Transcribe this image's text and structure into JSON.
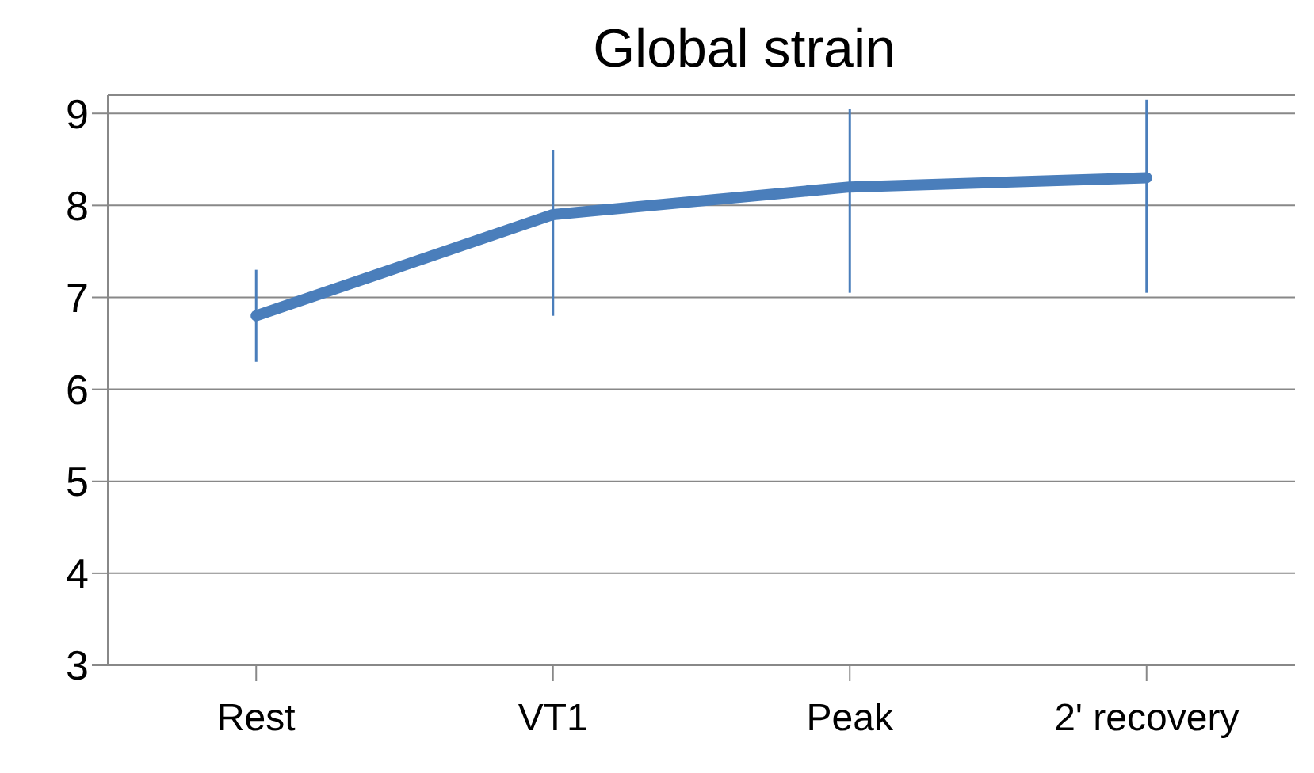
{
  "chart_data": {
    "type": "line",
    "title": "Global strain",
    "categories": [
      "Rest",
      "VT1",
      "Peak",
      "2' recovery"
    ],
    "series": [
      {
        "color": "#4a7ebb",
        "values": [
          6.8,
          7.9,
          8.2,
          8.3
        ],
        "errors": [
          [
            6.3,
            7.3
          ],
          [
            6.8,
            8.6
          ],
          [
            7.05,
            9.05
          ],
          [
            7.05,
            9.15
          ]
        ]
      }
    ],
    "ylim": [
      3,
      9.2
    ],
    "yticks": [
      3,
      4,
      5,
      6,
      7,
      8,
      9
    ],
    "grid": "y",
    "legend": false,
    "marker": "none",
    "line_style": "solid"
  }
}
